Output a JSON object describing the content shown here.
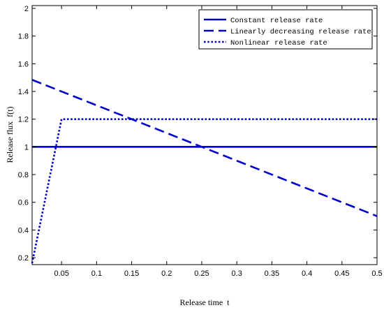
{
  "chart_data": {
    "type": "line",
    "title": "",
    "xlabel": "Release time  t",
    "ylabel": "Release flux  f(t)",
    "xlim": [
      0.008,
      0.5
    ],
    "ylim": [
      0.15,
      2.02
    ],
    "xticks": [
      0.05,
      0.1,
      0.15,
      0.2,
      0.25,
      0.3,
      0.35,
      0.4,
      0.45,
      0.5
    ],
    "xtick_labels": [
      "0.05",
      "0.1",
      "0.15",
      "0.2",
      "0.25",
      "0.3",
      "0.35",
      "0.4",
      "0.45",
      "0.5"
    ],
    "yticks": [
      0.2,
      0.4,
      0.6,
      0.8,
      1.0,
      1.2,
      1.4,
      1.6,
      1.8,
      2.0
    ],
    "ytick_labels": [
      "0.2",
      "0.4",
      "0.6",
      "0.8",
      "1",
      "1.2",
      "1.4",
      "1.6",
      "1.8",
      "2"
    ],
    "grid": false,
    "legend_position": "top-right",
    "series": [
      {
        "name": "Constant release rate",
        "style": "solid",
        "color": "#0000cc",
        "points": [
          [
            0.008,
            1.0
          ],
          [
            0.5,
            1.0
          ]
        ]
      },
      {
        "name": "Linearly decreasing release rate",
        "style": "dashed",
        "color": "#0000cc",
        "points": [
          [
            0.008,
            1.484
          ],
          [
            0.5,
            0.5
          ]
        ]
      },
      {
        "name": "Nonlinear release rate",
        "style": "dotted",
        "color": "#0000cc",
        "points": [
          [
            0.008,
            0.16
          ],
          [
            0.05,
            1.2
          ],
          [
            0.5,
            1.2
          ]
        ]
      }
    ]
  }
}
